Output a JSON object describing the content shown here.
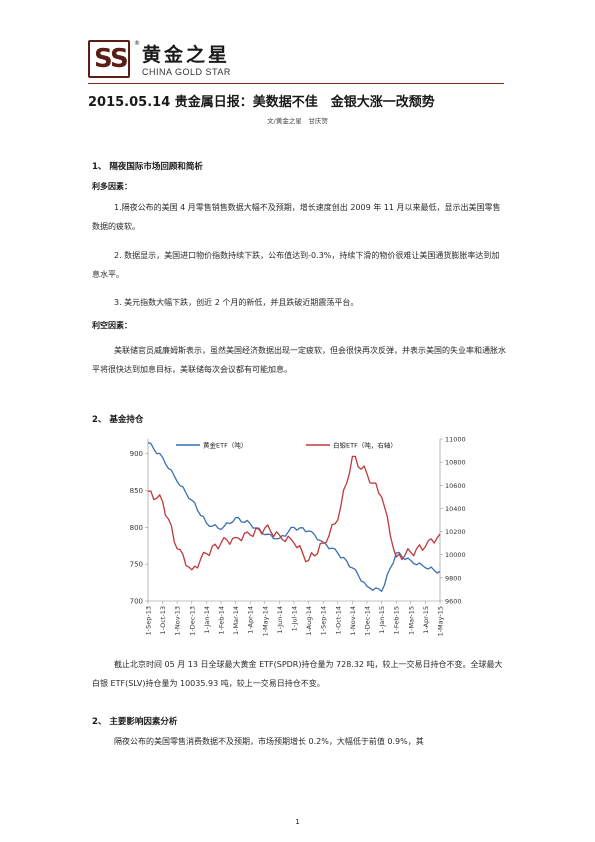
{
  "header": {
    "logo_cn": "黄金之星",
    "logo_en": "CHINA GOLD STAR",
    "logo_reg": "®"
  },
  "title": "2015.05.14 贵金属日报：美数据不佳　金银大涨一改颓势",
  "byline": "文/黄金之星　甘庆贺",
  "section1": {
    "heading": "1、 隔夜国际市场回顾和简析",
    "bullish_label": "利多因素：",
    "bullish": [
      "1.隔夜公布的美国 4 月零售销售数据大幅不及预期，增长速度创出 2009 年 11 月以来最低，显示出美国零售数据的疲软。",
      "2. 数据显示，美国进口物价指数持续下跌，公布值达到-0.3%，持续下滑的物价很难让美国通货膨胀率达到加息水平。",
      "3. 美元指数大幅下跌，创近 2 个月的新低，并且跌破近期震荡平台。"
    ],
    "bearish_label": "利空因素：",
    "bearish": "美联储官员威廉姆斯表示，虽然美国经济数据出现一定疲软，但会很快再次反弹，并表示美国的失业率和通胀水平将很快达到加息目标，美联储每次会议都有可能加息。"
  },
  "section2": {
    "heading": "2、 基金持仓",
    "paragraph": "截止北京时间 05 月 13 日全球最大黄金 ETF(SPDR)持仓量为 728.32 吨，较上一交易日持仓不变。全球最大白银 ETF(SLV)持仓量为 10035.93 吨，较上一交易日持仓不变。"
  },
  "section3": {
    "heading": "2、 主要影响因素分析",
    "paragraph": "隔夜公布的美国零售消费数据不及预期，市场预期增长 0.2%，大幅低于前值 0.9%，其"
  },
  "page_number": "1",
  "chart_data": {
    "type": "line",
    "categories": [
      "1-Sep-13",
      "1-Oct-13",
      "1-Nov-13",
      "1-Dec-13",
      "1-Jan-14",
      "1-Feb-14",
      "1-Mar-14",
      "1-Apr-14",
      "1-May-14",
      "1-Jun-14",
      "1-Jul-14",
      "1-Aug-14",
      "1-Sep-14",
      "1-Oct-14",
      "1-Nov-14",
      "1-Dec-14",
      "1-Jan-15",
      "1-Feb-15",
      "1-Mar-15",
      "1-Apr-15",
      "1-May-15"
    ],
    "yticks_left": [
      "700",
      "750",
      "800",
      "850",
      "900"
    ],
    "yticks_right": [
      "9600",
      "9800",
      "10000",
      "10200",
      "10400",
      "10600",
      "10800",
      "11000"
    ],
    "ylim_left": [
      700,
      920
    ],
    "ylim_right": [
      9600,
      11000
    ],
    "legend_position": "top",
    "colors": {
      "gold": "#3a6fb5",
      "silver": "#c0393b"
    },
    "series": [
      {
        "name": "黄金ETF（吨）",
        "axis": "left",
        "values": [
          915,
          895,
          862,
          837,
          806,
          797,
          813,
          805,
          790,
          785,
          800,
          795,
          780,
          765,
          745,
          720,
          713,
          765,
          755,
          745,
          740
        ]
      },
      {
        "name": "白银ETF（吨，右轴）",
        "axis": "right",
        "values": [
          10550,
          10460,
          10050,
          9870,
          10010,
          10100,
          10150,
          10170,
          10230,
          10170,
          10100,
          9950,
          10100,
          10300,
          10850,
          10700,
          10500,
          9980,
          10020,
          10070,
          10180
        ]
      }
    ]
  }
}
